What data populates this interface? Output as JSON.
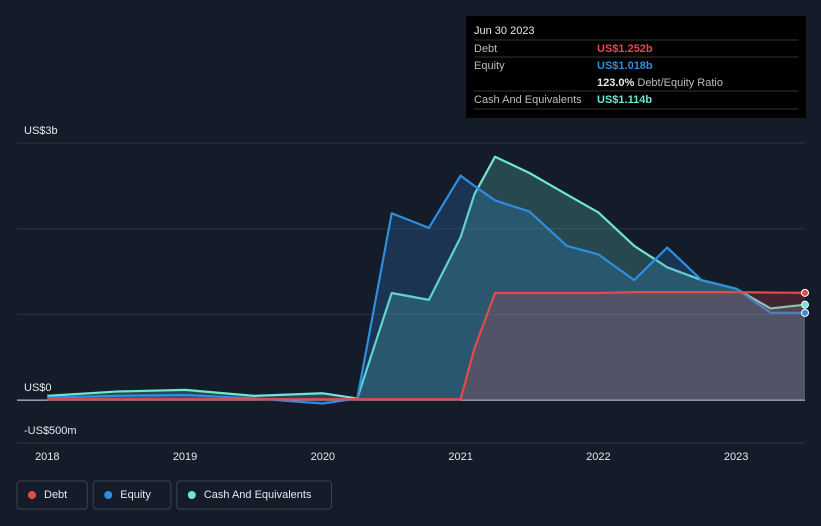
{
  "chart_data": {
    "type": "area",
    "tooltip": {
      "title": "Jun 30 2023",
      "debt": "US$1.252b",
      "equity": "US$1.018b",
      "ratio": "123.0%",
      "ratio_label": "Debt/Equity Ratio",
      "cash": "US$1.114b"
    },
    "x": [
      2018,
      2018.5,
      2019,
      2019.5,
      2020,
      2020.25,
      2020.5,
      2020.77,
      2021,
      2021.1,
      2021.25,
      2021.5,
      2021.77,
      2022,
      2022.26,
      2022.5,
      2022.75,
      2023,
      2023.25,
      2023.5
    ],
    "xlim": [
      2017.78,
      2023.5
    ],
    "xticks": [
      2018,
      2019,
      2020,
      2021,
      2022,
      2023
    ],
    "ylim": [
      -0.5,
      3
    ],
    "yticks": [
      {
        "value": -0.5,
        "label": "-US$500m"
      },
      {
        "value": 0,
        "label": "US$0"
      },
      {
        "value": 1,
        "label": null
      },
      {
        "value": 2,
        "label": null
      },
      {
        "value": 3,
        "label": "US$3b"
      }
    ],
    "grid": true,
    "series": [
      {
        "name": "Debt",
        "color": "#e5484d",
        "values": [
          0.01,
          0.01,
          0.01,
          0.01,
          0.01,
          0.01,
          0.01,
          0.01,
          0.01,
          0.6,
          1.25,
          1.25,
          1.25,
          1.25,
          1.26,
          1.26,
          1.26,
          1.26,
          1.255,
          1.252
        ]
      },
      {
        "name": "Equity",
        "color": "#2e8ee0",
        "values": [
          0.03,
          0.05,
          0.06,
          0.02,
          -0.04,
          0.02,
          2.18,
          2.01,
          2.62,
          2.5,
          2.33,
          2.2,
          1.8,
          1.7,
          1.4,
          1.78,
          1.4,
          1.3,
          1.02,
          1.018
        ]
      },
      {
        "name": "Cash And Equivalents",
        "color": "#6ee6d4",
        "values": [
          0.05,
          0.1,
          0.12,
          0.05,
          0.08,
          0.02,
          1.25,
          1.17,
          1.9,
          2.4,
          2.84,
          2.65,
          2.4,
          2.19,
          1.8,
          1.55,
          1.4,
          1.3,
          1.07,
          1.114
        ]
      }
    ]
  }
}
